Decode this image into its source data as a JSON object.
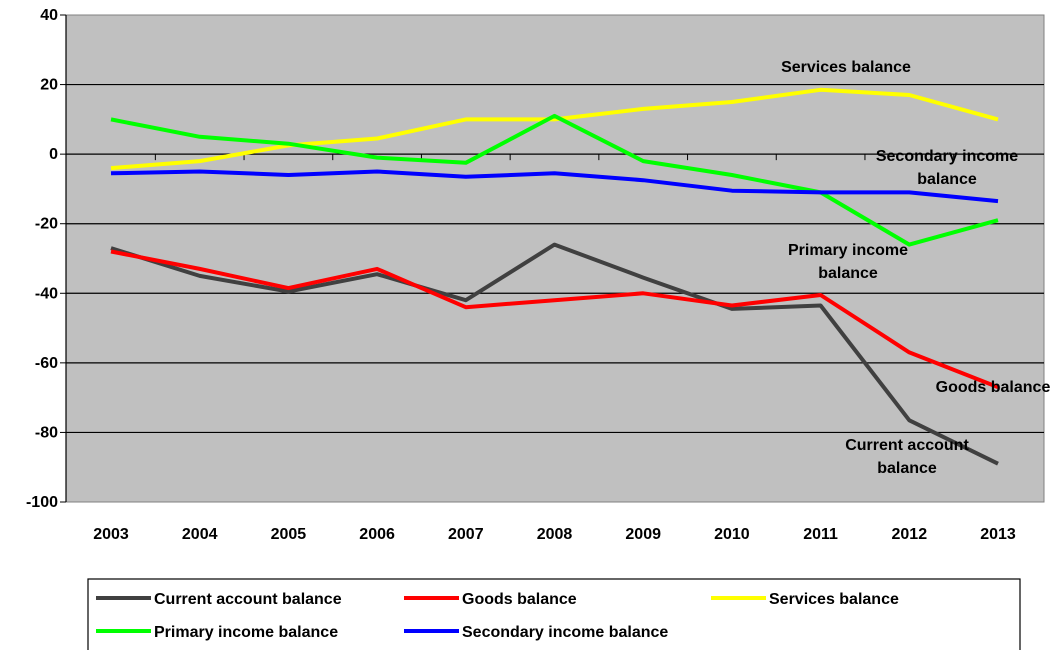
{
  "chart_data": {
    "type": "line",
    "title": "",
    "xlabel": "",
    "ylabel": "",
    "categories": [
      "2003",
      "2004",
      "2005",
      "2006",
      "2007",
      "2008",
      "2009",
      "2010",
      "2011",
      "2012",
      "2013"
    ],
    "y_ticks": [
      "40",
      "20",
      "0",
      "-20",
      "-40",
      "-60",
      "-80",
      "-100"
    ],
    "ylim": [
      -100,
      40
    ],
    "grid": "horizontal",
    "plot_background": "#c0c0c0",
    "legend_position": "bottom",
    "series": [
      {
        "name": "Current account balance",
        "color": "#404040",
        "values": [
          -27,
          -35,
          -39.5,
          -34.5,
          -42,
          -26,
          -35.5,
          -44.5,
          -43.5,
          -76.5,
          -89
        ]
      },
      {
        "name": "Goods balance",
        "color": "#ff0000",
        "values": [
          -28,
          -33,
          -38.5,
          -33,
          -44,
          -42,
          -40,
          -43.5,
          -40.5,
          -57,
          -67
        ]
      },
      {
        "name": "Services balance",
        "color": "#ffff00",
        "values": [
          -4,
          -2,
          2.5,
          4.5,
          10,
          10,
          13,
          15,
          18.5,
          17,
          10
        ]
      },
      {
        "name": "Primary income balance",
        "color": "#00ff00",
        "values": [
          10,
          5,
          3,
          -1,
          -2.5,
          11,
          -2,
          -6,
          -11,
          -26,
          -19
        ]
      },
      {
        "name": "Secondary income balance",
        "color": "#0000ff",
        "values": [
          -5.5,
          -5,
          -6,
          -5,
          -6.5,
          -5.5,
          -7.5,
          -10.5,
          -11,
          -11,
          -13.5
        ]
      }
    ],
    "annotations": [
      {
        "lines": [
          "Services balance"
        ]
      },
      {
        "lines": [
          "Secondary income",
          "balance"
        ]
      },
      {
        "lines": [
          "Primary income",
          "balance"
        ]
      },
      {
        "lines": [
          "Goods balance"
        ]
      },
      {
        "lines": [
          "Current account",
          "balance"
        ]
      }
    ]
  }
}
